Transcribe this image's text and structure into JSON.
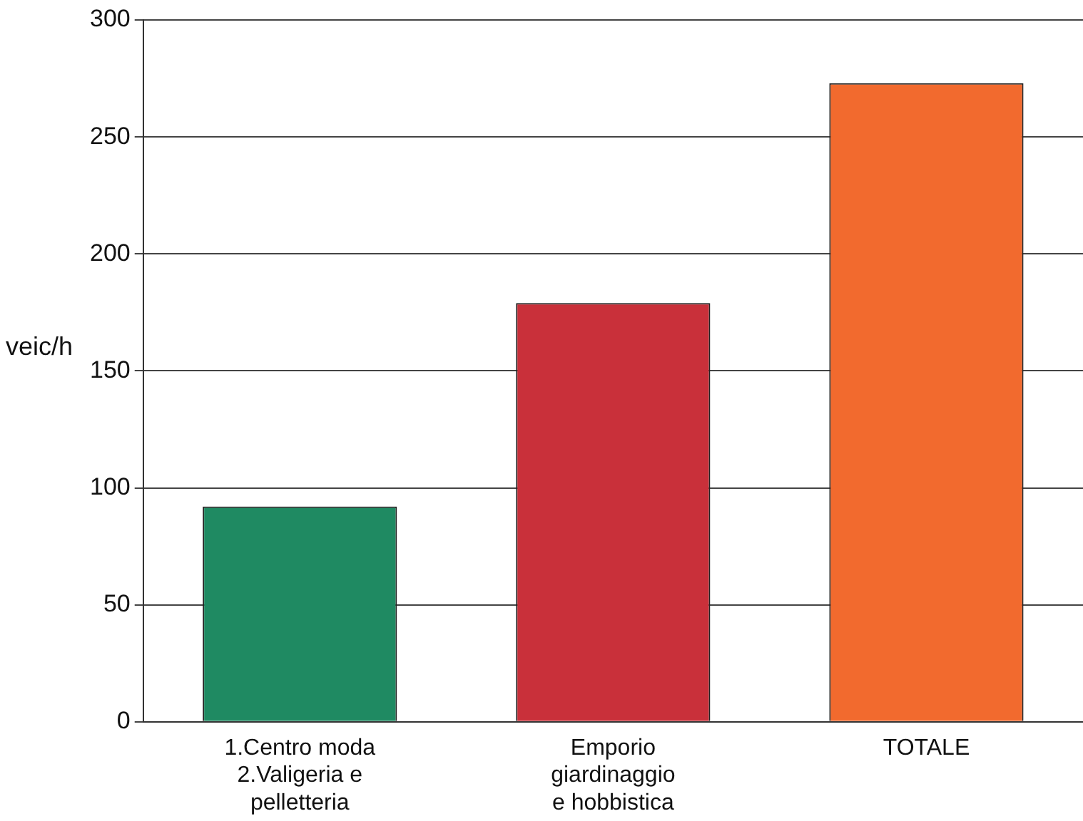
{
  "chart_data": {
    "type": "bar",
    "ylabel": "veic/h",
    "categories": [
      "1.Centro moda\n2.Valigeria e\npelletteria",
      "Emporio\ngiardinaggio\ne hobbistica",
      "TOTALE"
    ],
    "values": [
      92,
      179,
      273
    ],
    "colors": [
      "#1f8a62",
      "#c9303a",
      "#f26a2e"
    ],
    "ylim": [
      0,
      300
    ],
    "yticks": [
      0,
      50,
      100,
      150,
      200,
      250,
      300
    ],
    "grid": "y"
  }
}
